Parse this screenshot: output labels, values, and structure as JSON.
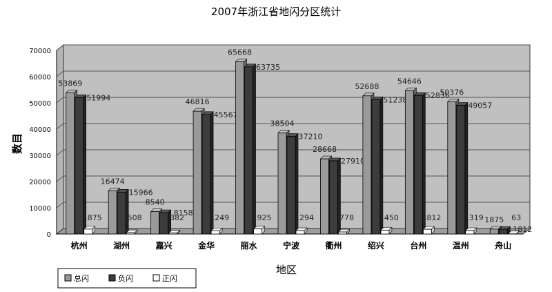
{
  "chart_data": {
    "type": "bar",
    "title": "2007年浙江省地闪分区统计",
    "xlabel": "地区",
    "ylabel": "数目",
    "categories": [
      "杭州",
      "湖州",
      "嘉兴",
      "金华",
      "丽水",
      "宁波",
      "衢州",
      "绍兴",
      "台州",
      "温州",
      "舟山"
    ],
    "series": [
      {
        "name": "总闪",
        "color": "#9a9a9a",
        "values": [
          53869,
          16474,
          8540,
          46816,
          65668,
          38504,
          28668,
          52688,
          54646,
          50376,
          1875
        ]
      },
      {
        "name": "负闪",
        "color": "#3c3c3c",
        "values": [
          51994,
          15966,
          8158,
          45567,
          63735,
          37210,
          27910,
          51238,
          52836,
          49057,
          1812
        ]
      },
      {
        "name": "正闪",
        "color": "#ffffff",
        "values": [
          1875,
          508,
          382,
          1249,
          1925,
          1294,
          778,
          1450,
          1812,
          1319,
          63
        ]
      }
    ],
    "data_labels": [
      [
        "53869",
        "51994",
        "1875"
      ],
      [
        "16474",
        "15966",
        "508"
      ],
      [
        "8540",
        "8158",
        "382"
      ],
      [
        "46816",
        "45567",
        "1249"
      ],
      [
        "65668",
        "63735",
        "1925"
      ],
      [
        "38504",
        "37210",
        "1294"
      ],
      [
        "28668",
        "27910",
        "778"
      ],
      [
        "52688",
        "51238",
        "1450"
      ],
      [
        "54646",
        "52836",
        "1812"
      ],
      [
        "50376",
        "49057",
        "1319"
      ],
      [
        "1875",
        "1812",
        "63"
      ]
    ],
    "ylim": [
      0,
      70000
    ],
    "yticks": [
      0,
      10000,
      20000,
      30000,
      40000,
      50000,
      60000,
      70000
    ],
    "ytick_labels": [
      "0",
      "10000",
      "20000",
      "30000",
      "40000",
      "50000",
      "60000",
      "70000"
    ],
    "grid": true,
    "legend_position": "bottom-left",
    "plot_background": "#c0c0c0"
  }
}
